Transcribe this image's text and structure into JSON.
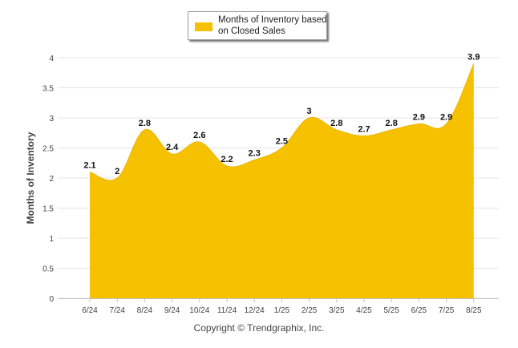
{
  "chart_data": {
    "type": "area",
    "categories": [
      "6/24",
      "7/24",
      "8/24",
      "9/24",
      "10/24",
      "11/24",
      "12/24",
      "1/25",
      "2/25",
      "3/25",
      "4/25",
      "5/25",
      "6/25",
      "7/25",
      "8/25"
    ],
    "series": [
      {
        "name": "Months of Inventory based on Closed Sales",
        "values": [
          2.1,
          2,
          2.8,
          2.4,
          2.6,
          2.2,
          2.3,
          2.5,
          3,
          2.8,
          2.7,
          2.8,
          2.9,
          2.9,
          3.9
        ],
        "labels": [
          "2.1",
          "2",
          "2.8",
          "2.4",
          "2.6",
          "2.2",
          "2.3",
          "2.5",
          "3",
          "2.8",
          "2.7",
          "2.8",
          "2.9",
          "2.9",
          "3.9"
        ]
      }
    ],
    "ylabel": "Months of Inventory",
    "xlabel": "",
    "ylim": [
      0,
      4
    ],
    "yticks": [
      "0",
      "0.5",
      "1",
      "1.5",
      "2",
      "2.5",
      "3",
      "3.5",
      "4"
    ],
    "grid": true,
    "legend_position": "top-center",
    "colors": {
      "fill": "#f6c100",
      "grid": "#e4e4e4",
      "axis": "#c0c0c0"
    }
  },
  "legend": {
    "label": "Months of Inventory based on Closed Sales"
  },
  "footer": {
    "copyright": "Copyright © Trendgraphix, Inc."
  }
}
